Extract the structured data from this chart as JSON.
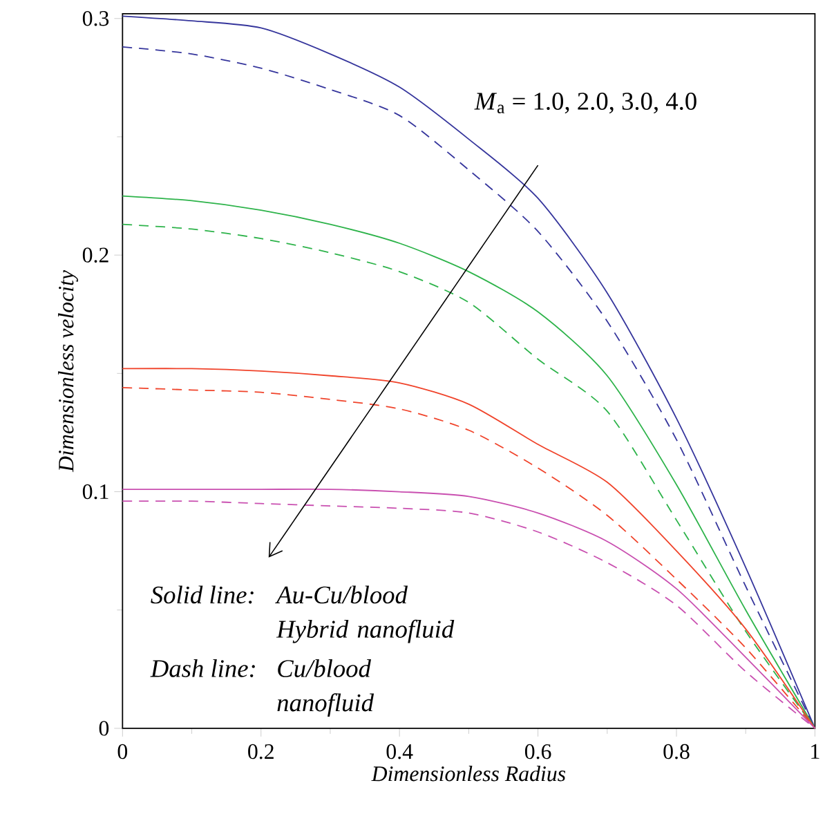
{
  "chart_data": {
    "type": "line",
    "xlabel": "Dimensionless Radius",
    "ylabel": "Dimensionless velocity",
    "x": [
      0,
      0.1,
      0.2,
      0.3,
      0.4,
      0.5,
      0.6,
      0.7,
      0.8,
      0.9,
      1.0
    ],
    "series": [
      {
        "color": "#35359c",
        "line_style": "solid",
        "values": [
          0.301,
          0.299,
          0.296,
          0.285,
          0.271,
          0.249,
          0.224,
          0.184,
          0.131,
          0.068,
          0
        ]
      },
      {
        "color": "#35359c",
        "line_style": "dashed",
        "values": [
          0.288,
          0.285,
          0.279,
          0.27,
          0.259,
          0.236,
          0.21,
          0.172,
          0.122,
          0.06,
          0
        ]
      },
      {
        "color": "#2db34a",
        "line_style": "solid",
        "values": [
          0.225,
          0.223,
          0.219,
          0.213,
          0.205,
          0.193,
          0.176,
          0.149,
          0.103,
          0.05,
          0
        ]
      },
      {
        "color": "#2db34a",
        "line_style": "dashed",
        "values": [
          0.213,
          0.211,
          0.207,
          0.201,
          0.193,
          0.18,
          0.156,
          0.134,
          0.088,
          0.041,
          0
        ]
      },
      {
        "color": "#f0432a",
        "line_style": "solid",
        "values": [
          0.152,
          0.152,
          0.151,
          0.149,
          0.146,
          0.137,
          0.12,
          0.104,
          0.075,
          0.042,
          0
        ]
      },
      {
        "color": "#f0432a",
        "line_style": "dashed",
        "values": [
          0.144,
          0.143,
          0.142,
          0.139,
          0.135,
          0.126,
          0.11,
          0.09,
          0.063,
          0.034,
          0
        ]
      },
      {
        "color": "#c94fb0",
        "line_style": "solid",
        "values": [
          0.101,
          0.101,
          0.101,
          0.101,
          0.1,
          0.098,
          0.091,
          0.079,
          0.059,
          0.03,
          0
        ]
      },
      {
        "color": "#c94fb0",
        "line_style": "dashed",
        "values": [
          0.096,
          0.096,
          0.095,
          0.094,
          0.093,
          0.091,
          0.083,
          0.07,
          0.052,
          0.024,
          0
        ]
      }
    ],
    "xlim": [
      0,
      1
    ],
    "ylim": [
      0,
      0.302
    ],
    "xticks": [
      0,
      {
        "value": 0.1,
        "label": null
      },
      0.2,
      {
        "value": 0.3,
        "label": null
      },
      0.4,
      {
        "value": 0.5,
        "label": null
      },
      0.6,
      {
        "value": 0.7,
        "label": null
      },
      0.8,
      {
        "value": 0.9,
        "label": null
      },
      1
    ],
    "yticks": [
      0,
      {
        "value": 0.05,
        "label": null
      },
      0.1,
      {
        "value": 0.15,
        "label": null
      },
      0.2,
      {
        "value": 0.25,
        "label": null
      },
      0.3
    ],
    "annotations": [
      "*M*$_{a}$ = 1.0, 2.0, 3.0, 4.0",
      "Solid line:",
      "Au-Cu/blood Hybrid nanofluid",
      "Dash line:",
      "Cu/blood nanofluid"
    ]
  }
}
